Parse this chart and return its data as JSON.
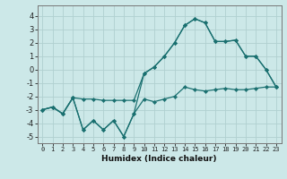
{
  "xlabel": "Humidex (Indice chaleur)",
  "background_color": "#cce8e8",
  "grid_color": "#b0d0d0",
  "line_color": "#1a7070",
  "xlim": [
    -0.5,
    23.5
  ],
  "ylim": [
    -5.5,
    4.8
  ],
  "yticks": [
    -5,
    -4,
    -3,
    -2,
    -1,
    0,
    1,
    2,
    3,
    4
  ],
  "xticks": [
    0,
    1,
    2,
    3,
    4,
    5,
    6,
    7,
    8,
    9,
    10,
    11,
    12,
    13,
    14,
    15,
    16,
    17,
    18,
    19,
    20,
    21,
    22,
    23
  ],
  "line1_x": [
    0,
    1,
    2,
    3,
    4,
    5,
    6,
    7,
    8,
    9,
    10,
    11,
    12,
    13,
    14,
    15,
    16,
    17,
    18,
    19,
    20,
    21,
    22,
    23
  ],
  "line1_y": [
    -3.0,
    -2.8,
    -3.3,
    -2.1,
    -4.5,
    -3.8,
    -4.5,
    -3.8,
    -5.0,
    -3.3,
    -2.2,
    -2.4,
    -2.2,
    -2.0,
    -1.3,
    -1.5,
    -1.6,
    -1.5,
    -1.4,
    -1.5,
    -1.5,
    -1.4,
    -1.3,
    -1.3
  ],
  "line2_x": [
    0,
    1,
    2,
    3,
    4,
    5,
    6,
    7,
    8,
    9,
    10,
    11,
    12,
    13,
    14,
    15,
    16,
    17,
    18,
    19,
    20,
    21,
    22,
    23
  ],
  "line2_y": [
    -3.0,
    -2.8,
    -3.3,
    -2.1,
    -4.5,
    -3.8,
    -4.5,
    -3.8,
    -5.0,
    -3.3,
    -0.3,
    0.2,
    1.0,
    2.0,
    3.3,
    3.8,
    3.5,
    2.1,
    2.1,
    2.2,
    1.0,
    1.0,
    0.0,
    -1.3
  ],
  "line3_x": [
    0,
    1,
    2,
    3,
    4,
    5,
    6,
    7,
    8,
    9,
    10,
    11,
    12,
    13,
    14,
    15,
    16,
    17,
    18,
    19,
    20,
    21,
    22,
    23
  ],
  "line3_y": [
    -3.0,
    -2.8,
    -3.3,
    -2.1,
    -2.2,
    -2.2,
    -2.3,
    -2.3,
    -2.3,
    -2.3,
    -0.3,
    0.2,
    1.0,
    2.0,
    3.3,
    3.8,
    3.5,
    2.1,
    2.1,
    2.2,
    1.0,
    1.0,
    0.0,
    -1.3
  ]
}
